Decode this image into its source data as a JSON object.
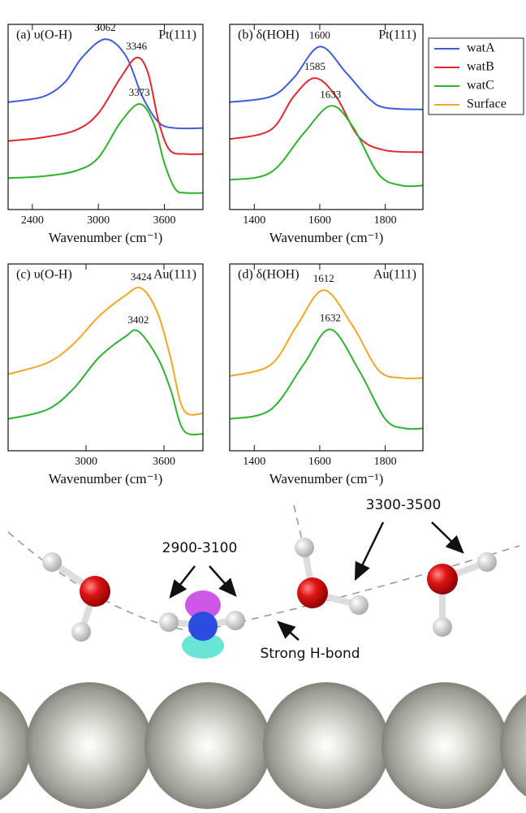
{
  "chart_data": [
    {
      "type": "line",
      "label": "(a) υ(O-H)",
      "surface": "Pt(111)",
      "x_label": "Wavenumber (cm⁻¹)",
      "xlim": [
        2180,
        3950
      ],
      "xticks": [
        2400,
        3000,
        3600
      ],
      "ylim": [
        0,
        1
      ],
      "series": [
        {
          "name": "watA",
          "color": "#3a5fd9",
          "peak": 3062,
          "x": [
            2180,
            2500,
            2700,
            2850,
            3062,
            3250,
            3400,
            3550,
            3700,
            3950
          ],
          "values": [
            0.58,
            0.61,
            0.69,
            0.82,
            0.92,
            0.83,
            0.61,
            0.47,
            0.44,
            0.44
          ]
        },
        {
          "name": "watB",
          "color": "#e8262b",
          "peak": 3346,
          "x": [
            2180,
            2500,
            2800,
            3000,
            3200,
            3346,
            3450,
            3550,
            3650,
            3800,
            3950
          ],
          "values": [
            0.37,
            0.39,
            0.43,
            0.52,
            0.71,
            0.82,
            0.74,
            0.47,
            0.32,
            0.3,
            0.3
          ]
        },
        {
          "name": "watC",
          "color": "#2bb52b",
          "peak": 3373,
          "x": [
            2180,
            2500,
            2800,
            3000,
            3200,
            3373,
            3500,
            3600,
            3700,
            3800,
            3950
          ],
          "values": [
            0.17,
            0.18,
            0.21,
            0.28,
            0.47,
            0.57,
            0.47,
            0.25,
            0.11,
            0.09,
            0.09
          ]
        }
      ]
    },
    {
      "type": "line",
      "label": "(b) δ(HOH)",
      "surface": "Pt(111)",
      "x_label": "Wavenumber (cm⁻¹)",
      "xlim": [
        1325,
        1915
      ],
      "xticks": [
        1400,
        1600,
        1800
      ],
      "ylim": [
        0,
        1
      ],
      "series": [
        {
          "name": "watA",
          "color": "#3a5fd9",
          "peak": 1600,
          "x": [
            1325,
            1450,
            1520,
            1600,
            1680,
            1750,
            1800,
            1915
          ],
          "values": [
            0.58,
            0.61,
            0.71,
            0.88,
            0.74,
            0.6,
            0.55,
            0.54
          ]
        },
        {
          "name": "watB",
          "color": "#e8262b",
          "peak": 1585,
          "x": [
            1325,
            1450,
            1520,
            1585,
            1650,
            1720,
            1800,
            1915
          ],
          "values": [
            0.38,
            0.43,
            0.61,
            0.71,
            0.61,
            0.39,
            0.32,
            0.31
          ]
        },
        {
          "name": "watC",
          "color": "#2bb52b",
          "peak": 1633,
          "x": [
            1325,
            1450,
            1550,
            1633,
            1700,
            1780,
            1850,
            1915
          ],
          "values": [
            0.16,
            0.2,
            0.41,
            0.56,
            0.45,
            0.19,
            0.13,
            0.13
          ]
        }
      ]
    },
    {
      "type": "line",
      "label": "(c) υ(O-H)",
      "surface": "Au(111)",
      "x_label": "Wavenumber (cm⁻¹)",
      "xlim": [
        2400,
        3900
      ],
      "xticks": [
        3000,
        3600
      ],
      "ylim": [
        0,
        1
      ],
      "series": [
        {
          "name": "Surface",
          "color": "#f5a623",
          "peak": 3424,
          "x": [
            2400,
            2700,
            2900,
            3100,
            3300,
            3424,
            3550,
            3650,
            3750,
            3900
          ],
          "values": [
            0.41,
            0.47,
            0.57,
            0.72,
            0.83,
            0.87,
            0.74,
            0.5,
            0.22,
            0.2
          ]
        },
        {
          "name": "watC",
          "color": "#2bb52b",
          "peak": 3402,
          "x": [
            2400,
            2700,
            2900,
            3100,
            3300,
            3402,
            3550,
            3650,
            3750,
            3900
          ],
          "values": [
            0.17,
            0.22,
            0.33,
            0.5,
            0.61,
            0.64,
            0.5,
            0.33,
            0.11,
            0.09
          ]
        }
      ]
    },
    {
      "type": "line",
      "label": "(d) δ(HOH)",
      "surface": "Au(111)",
      "x_label": "Wavenumber (cm⁻¹)",
      "xlim": [
        1325,
        1915
      ],
      "xticks": [
        1400,
        1600,
        1800
      ],
      "ylim": [
        0,
        1
      ],
      "series": [
        {
          "name": "Surface",
          "color": "#f5a623",
          "peak": 1612,
          "x": [
            1325,
            1450,
            1530,
            1612,
            1700,
            1780,
            1850,
            1915
          ],
          "values": [
            0.4,
            0.46,
            0.67,
            0.86,
            0.67,
            0.43,
            0.39,
            0.39
          ]
        },
        {
          "name": "watC",
          "color": "#2bb52b",
          "peak": 1632,
          "x": [
            1325,
            1450,
            1550,
            1632,
            1720,
            1800,
            1860,
            1915
          ],
          "values": [
            0.17,
            0.22,
            0.46,
            0.65,
            0.43,
            0.17,
            0.12,
            0.12
          ]
        }
      ]
    }
  ],
  "illustration": {
    "labels": [
      "2900-3100",
      "3300-3500",
      "Strong H-bond"
    ]
  }
}
